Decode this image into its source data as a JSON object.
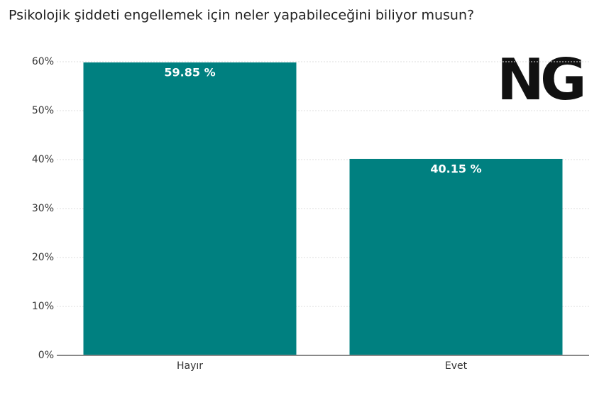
{
  "chart_data": {
    "type": "bar",
    "title": "Psikolojik şiddeti engellemek için neler yapabileceğini biliyor musun?",
    "logo_text": "NG",
    "categories": [
      "Hayır",
      "Evet"
    ],
    "values": [
      59.85,
      40.15
    ],
    "value_labels": [
      "59.85 %",
      "40.15 %"
    ],
    "color": "#008080",
    "ylim": [
      0,
      60
    ],
    "yticks": [
      {
        "value": 0,
        "label": "0%"
      },
      {
        "value": 10,
        "label": "10%"
      },
      {
        "value": 20,
        "label": "20%"
      },
      {
        "value": 30,
        "label": "30%"
      },
      {
        "value": 40,
        "label": "40%"
      },
      {
        "value": 50,
        "label": "50%"
      },
      {
        "value": 60,
        "label": "60%"
      }
    ],
    "grid": true
  }
}
